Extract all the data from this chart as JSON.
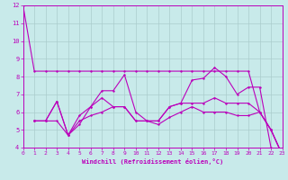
{
  "xlabel": "Windchill (Refroidissement éolien,°C)",
  "background_color": "#c8eaea",
  "grid_color": "#aacccc",
  "line_color": "#bb00bb",
  "xlim": [
    0,
    23
  ],
  "ylim": [
    4,
    12
  ],
  "yticks": [
    4,
    5,
    6,
    7,
    8,
    9,
    10,
    11,
    12
  ],
  "xticks": [
    0,
    1,
    2,
    3,
    4,
    5,
    6,
    7,
    8,
    9,
    10,
    11,
    12,
    13,
    14,
    15,
    16,
    17,
    18,
    19,
    20,
    21,
    22,
    23
  ],
  "series1": {
    "x": [
      0,
      1,
      2,
      3,
      4,
      5,
      6,
      7,
      8,
      9,
      10,
      11,
      12,
      13,
      14,
      15,
      16,
      17,
      18,
      19,
      20,
      21,
      22,
      23
    ],
    "y": [
      12,
      8.3,
      8.3,
      8.3,
      8.3,
      8.3,
      8.3,
      8.3,
      8.3,
      8.3,
      8.3,
      8.3,
      8.3,
      8.3,
      8.3,
      8.3,
      8.3,
      8.3,
      8.3,
      8.3,
      8.3,
      6.0,
      5.0,
      3.6
    ]
  },
  "series2": {
    "x": [
      1,
      2,
      3,
      4,
      5,
      6,
      7,
      8,
      9,
      10,
      11,
      12,
      13,
      14,
      15,
      16,
      17,
      18,
      19,
      20,
      21,
      22,
      23
    ],
    "y": [
      5.5,
      5.5,
      6.6,
      4.7,
      5.8,
      6.3,
      7.2,
      7.2,
      8.1,
      6.0,
      5.5,
      5.5,
      6.3,
      6.5,
      7.8,
      7.9,
      8.5,
      8.0,
      7.0,
      7.4,
      7.4,
      4.0,
      3.6
    ]
  },
  "series3": {
    "x": [
      1,
      2,
      3,
      4,
      5,
      6,
      7,
      8,
      9,
      10,
      11,
      12,
      13,
      14,
      15,
      16,
      17,
      18,
      19,
      20,
      21,
      22,
      23
    ],
    "y": [
      5.5,
      5.5,
      6.6,
      4.7,
      5.3,
      6.3,
      6.8,
      6.3,
      6.3,
      5.5,
      5.5,
      5.5,
      6.3,
      6.5,
      6.5,
      6.5,
      6.8,
      6.5,
      6.5,
      6.5,
      6.0,
      5.0,
      3.6
    ]
  },
  "series4": {
    "x": [
      1,
      2,
      3,
      4,
      5,
      6,
      7,
      8,
      9,
      10,
      11,
      12,
      13,
      14,
      15,
      16,
      17,
      18,
      19,
      20,
      21,
      22,
      23
    ],
    "y": [
      5.5,
      5.5,
      5.5,
      4.7,
      5.5,
      5.8,
      6.0,
      6.3,
      6.3,
      5.5,
      5.5,
      5.3,
      5.7,
      6.0,
      6.3,
      6.0,
      6.0,
      6.0,
      5.8,
      5.8,
      6.0,
      5.0,
      3.6
    ]
  }
}
